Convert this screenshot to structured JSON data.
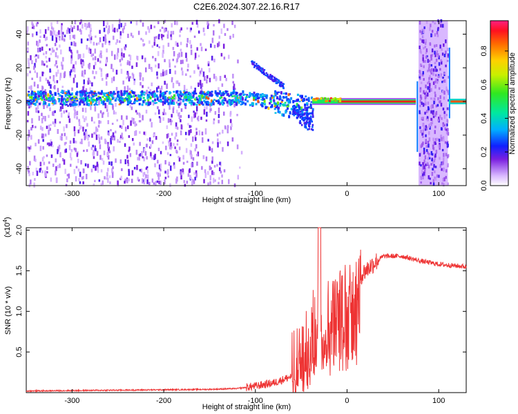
{
  "title": "C2E6.2024.307.22.16.R17",
  "chart_data": [
    {
      "type": "heatmap",
      "xlabel": "Height of straight line (km)",
      "ylabel": "Frequency (Hz)",
      "xlim": [
        -350,
        130
      ],
      "ylim": [
        -50,
        48
      ],
      "x_ticks": [
        -300,
        -200,
        -100,
        0,
        100
      ],
      "y_ticks": [
        -40,
        -20,
        0,
        20,
        40
      ],
      "colorbar": {
        "label": "Normalized spectral amplitude",
        "range": [
          0.0,
          0.98
        ],
        "ticks": [
          0.0,
          0.2,
          0.4,
          0.6,
          0.8
        ],
        "tick_labels": [
          "0.0",
          "0.2",
          "0.4",
          "0.6",
          "0.8"
        ]
      },
      "features": [
        {
          "name": "noise",
          "x_range": [
            -350,
            -120
          ],
          "level": 0.1
        },
        {
          "name": "main_band",
          "x_range": [
            -350,
            -40
          ],
          "freq": 2,
          "level": 0.35
        },
        {
          "name": "upper_branch",
          "x_range": [
            -105,
            -70
          ],
          "freq": 22,
          "level": 0.25
        },
        {
          "name": "steady_line",
          "x_range": [
            -38,
            75
          ],
          "freq": 0,
          "level": 0.9
        },
        {
          "name": "burst",
          "x_range": [
            75,
            110
          ],
          "level": 0.15
        },
        {
          "name": "steady_line_2",
          "x_range": [
            110,
            130
          ],
          "freq": 0,
          "level": 0.85
        }
      ]
    },
    {
      "type": "line",
      "xlabel": "Height of straight line (km)",
      "ylabel": "SNR (10 * v/v)",
      "scale_label": "(x10",
      "scale_exp": "4",
      "scale_close": ")",
      "xlim": [
        -350,
        130
      ],
      "ylim": [
        0,
        2.03
      ],
      "x_ticks": [
        -300,
        -200,
        -100,
        0,
        100
      ],
      "y_ticks": [
        0.5,
        1.0,
        1.5,
        2.0
      ],
      "y_tick_labels": [
        "0.5",
        "1.0",
        "1.5",
        "2.0"
      ],
      "series_color": "#ee3333",
      "profile": [
        [
          -350,
          0.02
        ],
        [
          -250,
          0.03
        ],
        [
          -150,
          0.04
        ],
        [
          -120,
          0.05
        ],
        [
          -100,
          0.08
        ],
        [
          -80,
          0.12
        ],
        [
          -60,
          0.2
        ],
        [
          -45,
          0.45
        ],
        [
          -35,
          0.8
        ],
        [
          -30,
          1.2
        ],
        [
          -20,
          1.0
        ],
        [
          -10,
          1.15
        ],
        [
          0,
          1.25
        ],
        [
          10,
          1.38
        ],
        [
          20,
          1.5
        ],
        [
          30,
          1.6
        ],
        [
          40,
          1.68
        ],
        [
          60,
          1.68
        ],
        [
          80,
          1.62
        ],
        [
          100,
          1.58
        ],
        [
          130,
          1.55
        ]
      ],
      "spike": {
        "x": -30,
        "y": 2.03
      }
    }
  ]
}
